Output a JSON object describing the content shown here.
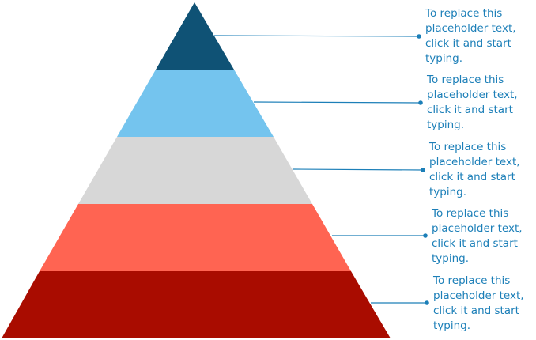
{
  "pyramid": {
    "levels": [
      {
        "name": "level-1",
        "color": "#0f5275",
        "text": "To replace this\nplaceholder text,\nclick it and start\ntyping."
      },
      {
        "name": "level-2",
        "color": "#74c4ee",
        "text": "To replace this\nplaceholder text,\nclick it and start\ntyping."
      },
      {
        "name": "level-3",
        "color": "#d7d7d7",
        "text": "To replace this\nplaceholder text,\nclick it and start\ntyping."
      },
      {
        "name": "level-4",
        "color": "#ff6452",
        "text": "To replace this\nplaceholder text,\nclick it and start\ntyping."
      },
      {
        "name": "level-5",
        "color": "#a90c00",
        "text": "To replace this\nplaceholder text,\nclick it and start\ntyping."
      }
    ],
    "connector_color": "#1c7fb8"
  }
}
